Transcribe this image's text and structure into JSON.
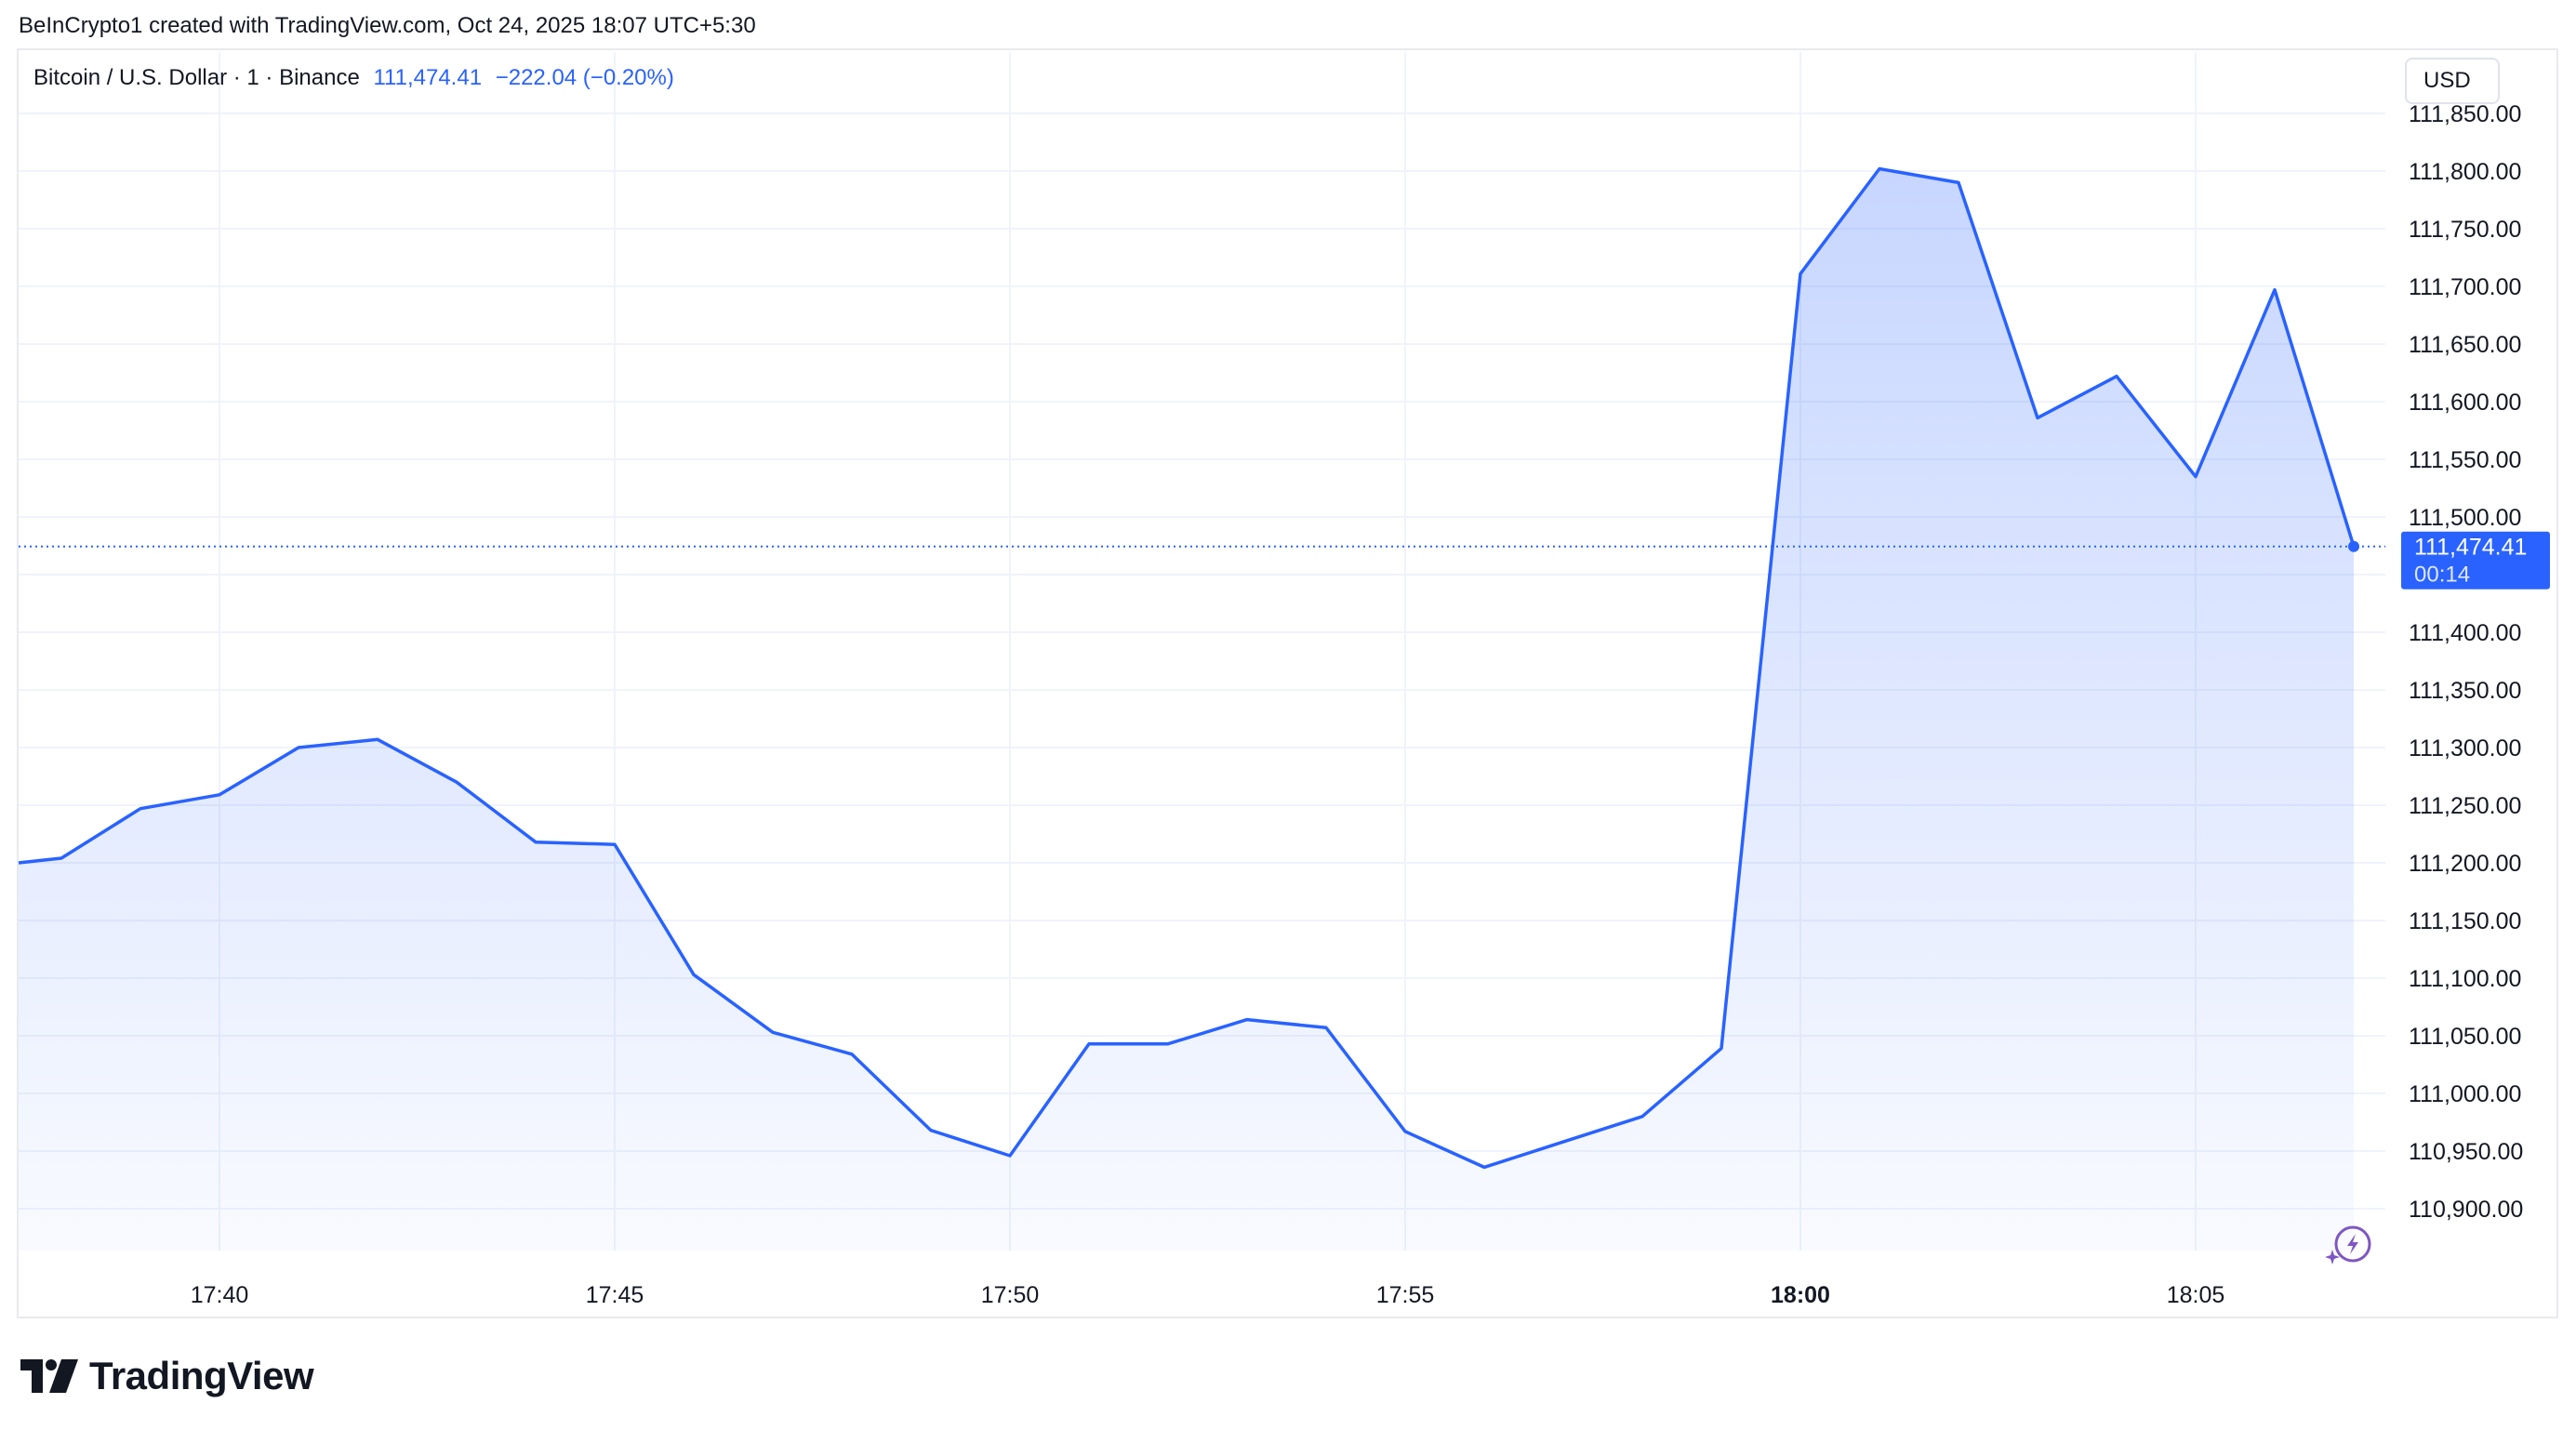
{
  "credit_line": "BeInCrypto1 created with TradingView.com, Oct 24, 2025 18:07 UTC+5:30",
  "legend": {
    "symbol": "Bitcoin / U.S. Dollar · 1 · Binance",
    "price": "111,474.41",
    "change": "−222.04 (−0.20%)"
  },
  "currency_label": "USD",
  "price_tag": {
    "value": "111,474.41",
    "countdown": "00:14"
  },
  "brand": "TradingView",
  "colors": {
    "line": "#2962ff",
    "accent": "#2962ff",
    "grid": "#f0f3fa",
    "text": "#131722",
    "spark_icon": "#7e57c2"
  },
  "icons": {
    "spark": "sparkle-lightning-icon",
    "logo": "tradingview-logo-icon"
  },
  "chart_data": {
    "type": "area",
    "x": [
      "17:38",
      "17:39",
      "17:40",
      "17:41",
      "17:42",
      "17:43",
      "17:44",
      "17:45",
      "17:46",
      "17:47",
      "17:48",
      "17:49",
      "17:50",
      "17:51",
      "17:52",
      "17:53",
      "17:54",
      "17:55",
      "17:56",
      "17:57",
      "17:58",
      "17:59",
      "18:00",
      "18:01",
      "18:02",
      "18:03",
      "18:04",
      "18:05",
      "18:06",
      "18:07"
    ],
    "values": [
      111204,
      111247,
      111259,
      111300,
      111307,
      111270,
      111218,
      111216,
      111103,
      111053,
      111034,
      110968,
      110946,
      111043,
      111043,
      111064,
      111057,
      110967,
      110936,
      110958,
      110980,
      111039,
      111711,
      111802,
      111790,
      111586,
      111622,
      111535,
      111697,
      111474.41
    ],
    "first_point_start": 111200,
    "y_ticks": [
      110900,
      110950,
      111000,
      111050,
      111100,
      111150,
      111200,
      111250,
      111300,
      111350,
      111400,
      111450,
      111500,
      111550,
      111600,
      111650,
      111700,
      111750,
      111800,
      111850
    ],
    "y_tick_labels": [
      "110,900.00",
      "110,950.00",
      "111,000.00",
      "111,050.00",
      "111,100.00",
      "111,150.00",
      "111,200.00",
      "111,250.00",
      "111,300.00",
      "111,350.00",
      "111,400.00",
      "",
      "111,500.00",
      "111,550.00",
      "111,600.00",
      "111,650.00",
      "111,700.00",
      "111,750.00",
      "111,800.00",
      "111,850.00"
    ],
    "x_ticks": [
      "17:40",
      "17:45",
      "17:50",
      "17:55",
      "18:00",
      "18:05"
    ],
    "x_tick_bold": "18:00",
    "ylim": [
      110860,
      111870
    ],
    "last_value": 111474.41,
    "grid": true
  }
}
